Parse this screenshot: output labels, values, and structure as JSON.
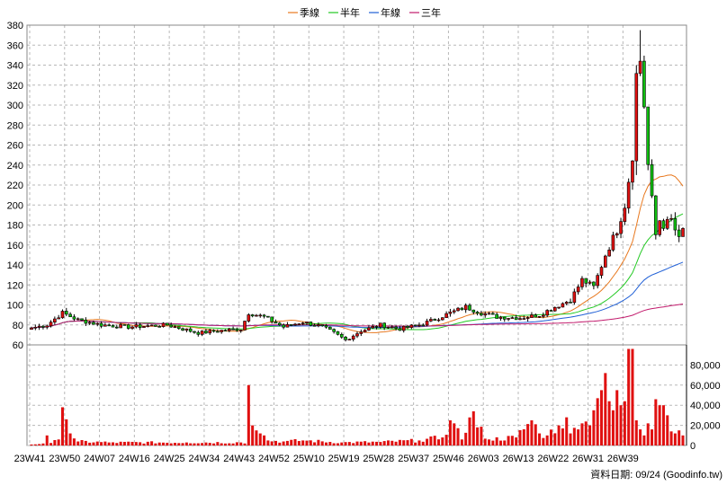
{
  "chart_data": {
    "type": "candlestick",
    "legend": [
      {
        "name": "季線",
        "color": "#e8781e"
      },
      {
        "name": "半年",
        "color": "#22c922"
      },
      {
        "name": "年線",
        "color": "#1f5fd6"
      },
      {
        "name": "三年",
        "color": "#c21a6c"
      }
    ],
    "price_axis": {
      "ylim": [
        60,
        380
      ],
      "ticks": [
        60,
        80,
        100,
        120,
        140,
        160,
        180,
        200,
        220,
        240,
        260,
        280,
        300,
        320,
        340,
        360,
        380
      ]
    },
    "volume_axis": {
      "ylim": [
        0,
        100000
      ],
      "ticks": [
        0,
        20000,
        40000,
        60000,
        80000
      ],
      "tick_labels": [
        "0",
        "20,000",
        "40,000",
        "60,000",
        "80,000"
      ]
    },
    "x_ticks": [
      "23W41",
      "23W50",
      "24W07",
      "24W16",
      "24W25",
      "24W34",
      "24W43",
      "24W52",
      "25W10",
      "25W19",
      "25W28",
      "25W37",
      "25W46",
      "26W03",
      "26W13",
      "26W22",
      "26W31",
      "26W39"
    ],
    "weeks_per_tick": 9,
    "anchor_close": [
      [
        0,
        77
      ],
      [
        4,
        80
      ],
      [
        8,
        92
      ],
      [
        12,
        85
      ],
      [
        18,
        80
      ],
      [
        25,
        78
      ],
      [
        35,
        80
      ],
      [
        43,
        72
      ],
      [
        48,
        74
      ],
      [
        54,
        76
      ],
      [
        56,
        92
      ],
      [
        60,
        88
      ],
      [
        65,
        78
      ],
      [
        70,
        83
      ],
      [
        75,
        78
      ],
      [
        78,
        72
      ],
      [
        81,
        65
      ],
      [
        85,
        74
      ],
      [
        90,
        80
      ],
      [
        95,
        76
      ],
      [
        100,
        80
      ],
      [
        103,
        84
      ],
      [
        108,
        92
      ],
      [
        112,
        98
      ],
      [
        116,
        92
      ],
      [
        120,
        88
      ],
      [
        126,
        87
      ],
      [
        131,
        90
      ],
      [
        135,
        98
      ],
      [
        139,
        105
      ],
      [
        142,
        125
      ],
      [
        145,
        118
      ],
      [
        148,
        150
      ],
      [
        151,
        175
      ],
      [
        153,
        200
      ],
      [
        155,
        250
      ],
      [
        156,
        330
      ],
      [
        157,
        345
      ],
      [
        158,
        300
      ],
      [
        159,
        240
      ],
      [
        160,
        205
      ],
      [
        161,
        170
      ],
      [
        162,
        185
      ],
      [
        163,
        180
      ],
      [
        164,
        182
      ],
      [
        165,
        185
      ],
      [
        166,
        175
      ],
      [
        167,
        165
      ],
      [
        168,
        175
      ]
    ],
    "anchor_volume": [
      [
        0,
        1000
      ],
      [
        3,
        2000
      ],
      [
        4,
        10000
      ],
      [
        5,
        2500
      ],
      [
        7,
        6000
      ],
      [
        8,
        38000
      ],
      [
        9,
        26000
      ],
      [
        10,
        12000
      ],
      [
        11,
        7000
      ],
      [
        12,
        4000
      ],
      [
        20,
        3000
      ],
      [
        40,
        3000
      ],
      [
        54,
        3000
      ],
      [
        55,
        2000
      ],
      [
        56,
        60000
      ],
      [
        57,
        20000
      ],
      [
        58,
        15000
      ],
      [
        59,
        12000
      ],
      [
        60,
        10000
      ],
      [
        61,
        5000
      ],
      [
        65,
        4000
      ],
      [
        70,
        5000
      ],
      [
        80,
        3000
      ],
      [
        90,
        3500
      ],
      [
        100,
        5000
      ],
      [
        106,
        8000
      ],
      [
        108,
        25000
      ],
      [
        109,
        22000
      ],
      [
        111,
        6000
      ],
      [
        114,
        34000
      ],
      [
        115,
        18000
      ],
      [
        118,
        6000
      ],
      [
        125,
        8000
      ],
      [
        129,
        25000
      ],
      [
        131,
        12000
      ],
      [
        133,
        10000
      ],
      [
        136,
        20000
      ],
      [
        138,
        28000
      ],
      [
        139,
        12000
      ],
      [
        141,
        16000
      ],
      [
        142,
        22000
      ],
      [
        144,
        20000
      ],
      [
        145,
        35000
      ],
      [
        146,
        47000
      ],
      [
        147,
        55000
      ],
      [
        148,
        72000
      ],
      [
        149,
        44000
      ],
      [
        150,
        35000
      ],
      [
        151,
        55000
      ],
      [
        152,
        40000
      ],
      [
        153,
        44000
      ],
      [
        154,
        96000
      ],
      [
        155,
        96000
      ],
      [
        156,
        25000
      ],
      [
        157,
        16000
      ],
      [
        158,
        10000
      ],
      [
        159,
        22000
      ],
      [
        160,
        16000
      ],
      [
        161,
        46000
      ],
      [
        162,
        40000
      ],
      [
        163,
        40000
      ],
      [
        164,
        30000
      ],
      [
        165,
        14000
      ],
      [
        166,
        12000
      ],
      [
        167,
        15000
      ],
      [
        168,
        10000
      ]
    ],
    "footer": "資料日期: 09/24   (Goodinfo.tw)"
  }
}
